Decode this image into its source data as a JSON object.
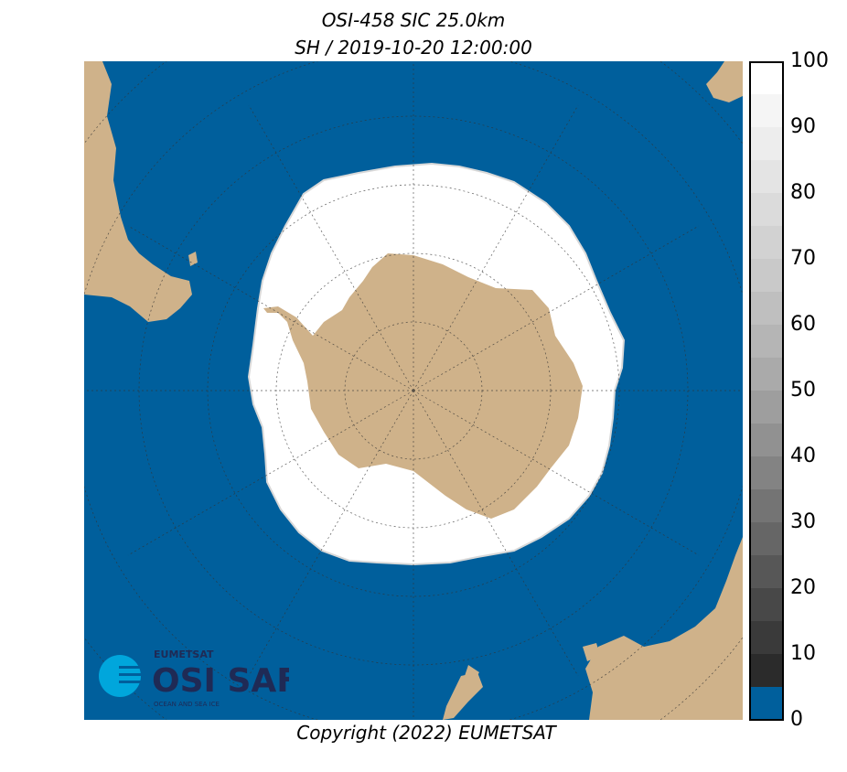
{
  "header": {
    "title": "OSI-458 SIC 25.0km",
    "subtitle": "SH / 2019-10-20 12:00:00"
  },
  "footer": {
    "copyright": "Copyright (2022)  EUMETSAT"
  },
  "colorbar": {
    "ticks": [
      "0",
      "10",
      "20",
      "30",
      "40",
      "50",
      "60",
      "70",
      "80",
      "90",
      "100"
    ],
    "open_water_color": "#005f9c",
    "range": [
      0,
      100
    ],
    "unit_scale": "percent"
  },
  "map": {
    "ocean_color": "#005f9c",
    "land_color": "#cfb28a",
    "ice_color": "#ffffff",
    "projection": "south-polar-stereographic",
    "graticule": "dotted"
  },
  "logo": {
    "top_text": "EUMETSAT",
    "main_text": "OSI SAF",
    "bottom_text": "OCEAN AND SEA ICE"
  }
}
